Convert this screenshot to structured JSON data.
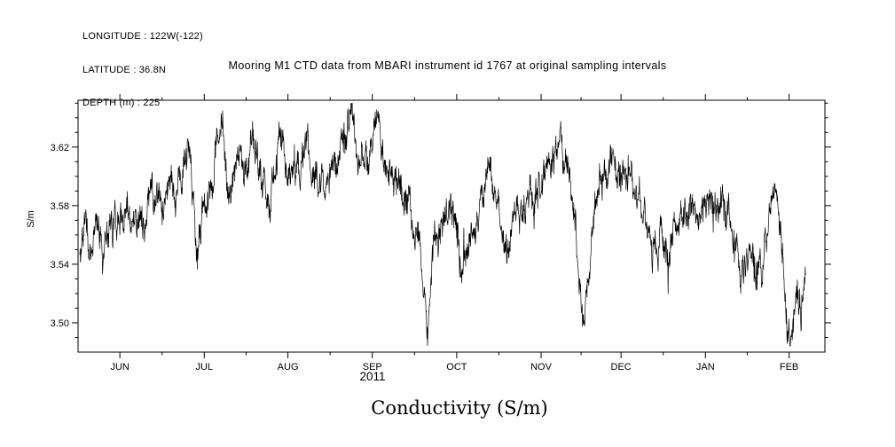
{
  "header_info": {
    "line1": "LONGITUDE : 122W(-122)",
    "line2": "LATITUDE : 36.8N",
    "line3": "DEPTH (m) : 225"
  },
  "title": "Mooring M1 CTD data from MBARI instrument id 1767 at original sampling intervals",
  "xlabel_year": "2011",
  "caption": "Conductivity (S/m)",
  "colors": {
    "series": "#000000",
    "background": "#ffffff",
    "axis": "#000000"
  },
  "chart_data": {
    "type": "line",
    "title": "Mooring M1 CTD data from MBARI instrument id 1767 at original sampling intervals",
    "series_name": "Conductivity",
    "ylabel": "S/m",
    "xlabel": "2011",
    "caption": "Conductivity (S/m)",
    "ylim": [
      3.48,
      3.652
    ],
    "y_ticks": [
      3.5,
      3.54,
      3.58,
      3.62
    ],
    "y_tick_labels": [
      "3.50",
      "3.54",
      "3.58",
      "3.62"
    ],
    "y_minor_step": 0.01,
    "grid": false,
    "legend": "none",
    "x_ticks": [
      {
        "label": "JUN",
        "t": 0.056
      },
      {
        "label": "JUL",
        "t": 0.169
      },
      {
        "label": "AUG",
        "t": 0.281
      },
      {
        "label": "SEP",
        "t": 0.394
      },
      {
        "label": "OCT",
        "t": 0.507
      },
      {
        "label": "NOV",
        "t": 0.62
      },
      {
        "label": "DEC",
        "t": 0.727
      },
      {
        "label": "JAN",
        "t": 0.84
      },
      {
        "label": "FEB",
        "t": 0.952
      }
    ],
    "noise_amplitude": 0.014,
    "trend_points": [
      [
        0.002,
        3.548
      ],
      [
        0.01,
        3.562
      ],
      [
        0.018,
        3.55
      ],
      [
        0.03,
        3.558
      ],
      [
        0.043,
        3.565
      ],
      [
        0.055,
        3.57
      ],
      [
        0.074,
        3.576
      ],
      [
        0.085,
        3.568
      ],
      [
        0.097,
        3.59
      ],
      [
        0.11,
        3.585
      ],
      [
        0.121,
        3.592
      ],
      [
        0.139,
        3.6
      ],
      [
        0.148,
        3.608
      ],
      [
        0.154,
        3.585
      ],
      [
        0.159,
        3.545
      ],
      [
        0.166,
        3.56
      ],
      [
        0.18,
        3.61
      ],
      [
        0.192,
        3.636
      ],
      [
        0.202,
        3.6
      ],
      [
        0.216,
        3.615
      ],
      [
        0.234,
        3.63
      ],
      [
        0.246,
        3.6
      ],
      [
        0.258,
        3.585
      ],
      [
        0.27,
        3.615
      ],
      [
        0.287,
        3.6
      ],
      [
        0.305,
        3.61
      ],
      [
        0.323,
        3.59
      ],
      [
        0.337,
        3.605
      ],
      [
        0.353,
        3.61
      ],
      [
        0.365,
        3.645
      ],
      [
        0.376,
        3.615
      ],
      [
        0.388,
        3.62
      ],
      [
        0.4,
        3.63
      ],
      [
        0.412,
        3.605
      ],
      [
        0.43,
        3.6
      ],
      [
        0.444,
        3.585
      ],
      [
        0.456,
        3.555
      ],
      [
        0.468,
        3.505
      ],
      [
        0.477,
        3.555
      ],
      [
        0.489,
        3.575
      ],
      [
        0.501,
        3.58
      ],
      [
        0.513,
        3.535
      ],
      [
        0.525,
        3.56
      ],
      [
        0.539,
        3.585
      ],
      [
        0.551,
        3.605
      ],
      [
        0.563,
        3.575
      ],
      [
        0.575,
        3.555
      ],
      [
        0.59,
        3.58
      ],
      [
        0.608,
        3.59
      ],
      [
        0.626,
        3.6
      ],
      [
        0.644,
        3.635
      ],
      [
        0.655,
        3.6
      ],
      [
        0.67,
        3.545
      ],
      [
        0.677,
        3.505
      ],
      [
        0.689,
        3.56
      ],
      [
        0.703,
        3.595
      ],
      [
        0.721,
        3.605
      ],
      [
        0.739,
        3.6
      ],
      [
        0.753,
        3.585
      ],
      [
        0.768,
        3.545
      ],
      [
        0.78,
        3.57
      ],
      [
        0.792,
        3.55
      ],
      [
        0.808,
        3.578
      ],
      [
        0.822,
        3.572
      ],
      [
        0.84,
        3.58
      ],
      [
        0.857,
        3.582
      ],
      [
        0.872,
        3.565
      ],
      [
        0.887,
        3.535
      ],
      [
        0.899,
        3.548
      ],
      [
        0.907,
        3.532
      ],
      [
        0.919,
        3.552
      ],
      [
        0.931,
        3.588
      ],
      [
        0.935,
        3.595
      ],
      [
        0.943,
        3.555
      ],
      [
        0.95,
        3.5
      ],
      [
        0.956,
        3.492
      ],
      [
        0.962,
        3.53
      ],
      [
        0.968,
        3.502
      ],
      [
        0.971,
        3.515
      ],
      [
        0.974,
        3.54
      ]
    ]
  }
}
